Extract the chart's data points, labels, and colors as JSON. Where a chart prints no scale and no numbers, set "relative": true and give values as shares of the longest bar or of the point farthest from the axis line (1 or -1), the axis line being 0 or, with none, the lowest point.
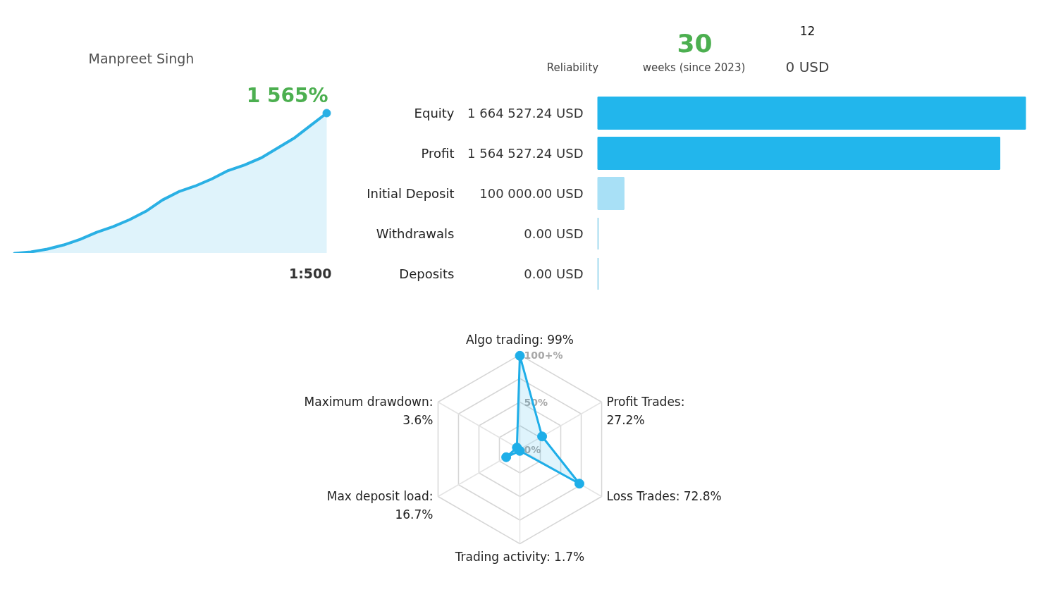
{
  "chart_data": [
    {
      "type": "other",
      "annotations": [
        "Manpreet Singh",
        "Reliability",
        "30",
        "weeks (since 2023)",
        "12",
        "0 USD"
      ]
    },
    {
      "type": "area",
      "relative": true,
      "categories": [
        null,
        null,
        null,
        null,
        null,
        null,
        null,
        null,
        null,
        null,
        null,
        null,
        null,
        null,
        null,
        null,
        null,
        null,
        null,
        null
      ],
      "values": [
        0,
        0.01,
        0.03,
        0.06,
        0.1,
        0.15,
        0.19,
        0.24,
        0.3,
        0.38,
        0.44,
        0.48,
        0.53,
        0.59,
        0.63,
        0.68,
        0.75,
        0.82,
        0.91,
        1
      ],
      "color": "#2ab0e4",
      "annotations": [
        "1 565%",
        "1:500"
      ]
    },
    {
      "type": "bar",
      "orientation": "horizontal",
      "categories": [
        "Equity",
        "Profit",
        "Initial Deposit",
        "Withdrawals",
        "Deposits"
      ],
      "values": [
        1664527.24,
        1564527.24,
        100000,
        0,
        0
      ],
      "value_labels": [
        "1 664 527.24 USD",
        "1 564 527.24 USD",
        "100 000.00 USD",
        "0.00 USD",
        "0.00 USD"
      ],
      "colors": [
        "#22b6ec",
        "#22b6ec",
        "#a8e0f6",
        "#a6dcef",
        "#a6dcef"
      ]
    },
    {
      "type": "radar",
      "categories": [
        "Algo trading: 99%",
        "Profit Trades: 27.2%",
        "Loss Trades: 72.8%",
        "Trading activity: 1.7%",
        "Max deposit load: 16.7%",
        "Maximum drawdown: 3.6%"
      ],
      "series": [
        {
          "color": "#1eaee8",
          "values": [
            99,
            27.2,
            72.8,
            1.7,
            16.7,
            3.6
          ]
        }
      ],
      "ylim": [
        0,
        100
      ],
      "yticks": [
        {
          "value": 0,
          "label": "0%"
        },
        {
          "value": 50,
          "label": "50%"
        },
        {
          "value": 100,
          "label": "100+%"
        }
      ],
      "grid": true,
      "marker": "circle"
    }
  ]
}
